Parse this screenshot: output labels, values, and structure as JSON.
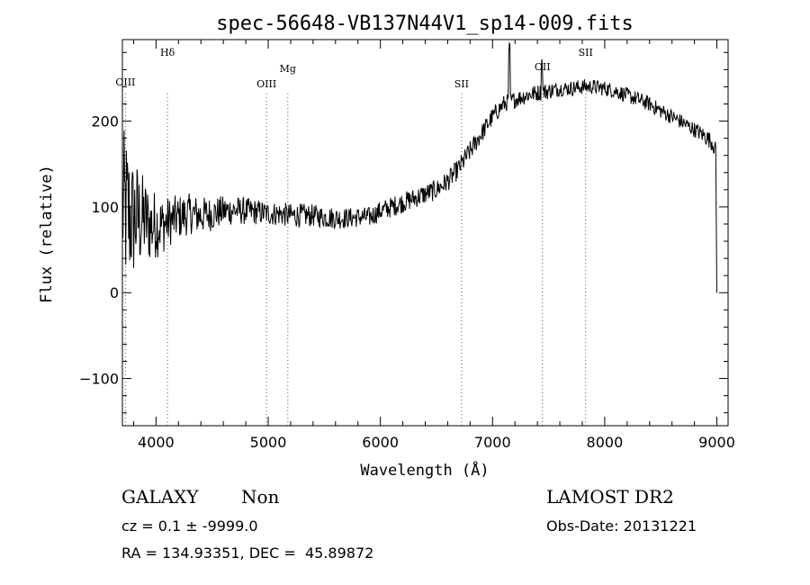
{
  "chart_data": {
    "type": "line",
    "title": "spec-56648-VB137N44V1_sp14-009.fits",
    "xlabel": "Wavelength (Å)",
    "ylabel": "Flux (relative)",
    "xlim": [
      3700,
      9100
    ],
    "ylim": [
      -155,
      295
    ],
    "xticks": [
      4000,
      5000,
      6000,
      7000,
      8000,
      9000
    ],
    "yticks": [
      -100,
      0,
      100,
      200
    ],
    "grid": false,
    "series": [
      {
        "x": [
          3700,
          3730,
          3760,
          3790,
          3820,
          3860,
          3900,
          3950,
          4000,
          4050,
          4100,
          4150,
          4200,
          4300,
          4400,
          4500,
          4600,
          4700,
          4800,
          4900,
          5000,
          5100,
          5200,
          5300,
          5400,
          5500,
          5600,
          5700,
          5800,
          5900,
          6000,
          6100,
          6200,
          6300,
          6400,
          6500,
          6600,
          6700,
          6800,
          6900,
          7000,
          7100,
          7200,
          7300,
          7400,
          7500,
          7600,
          7700,
          7800,
          7900,
          8000,
          8100,
          8200,
          8300,
          8400,
          8500,
          8600,
          8700,
          8800,
          8900,
          8960,
          8990,
          9000
        ],
        "y": [
          100,
          95,
          90,
          85,
          88,
          85,
          85,
          78,
          80,
          78,
          82,
          85,
          88,
          92,
          90,
          92,
          95,
          96,
          95,
          94,
          92,
          92,
          90,
          90,
          90,
          88,
          87,
          87,
          88,
          88,
          95,
          100,
          105,
          110,
          115,
          120,
          130,
          145,
          165,
          185,
          205,
          220,
          225,
          230,
          233,
          235,
          238,
          238,
          240,
          240,
          238,
          235,
          230,
          225,
          220,
          212,
          205,
          198,
          190,
          182,
          175,
          165,
          0
        ],
        "noise": [
          90,
          95,
          85,
          75,
          70,
          60,
          50,
          45,
          40,
          35,
          30,
          28,
          26,
          24,
          22,
          20,
          18,
          17,
          16,
          15,
          14,
          14,
          14,
          14,
          13,
          13,
          13,
          12,
          12,
          12,
          12,
          12,
          12,
          12,
          12,
          12,
          12,
          12,
          12,
          11,
          11,
          10,
          10,
          10,
          10,
          10,
          9,
          9,
          9,
          9,
          9,
          9,
          9,
          9,
          9,
          9,
          9,
          9,
          9,
          10,
          10,
          10,
          0
        ]
      }
    ],
    "line_markers": [
      {
        "label": "OIII",
        "x": 3727
      },
      {
        "label": "Hδ",
        "x": 4102
      },
      {
        "label": "OIII",
        "x": 4985
      },
      {
        "label": "Mg",
        "x": 5175
      },
      {
        "label": "SII",
        "x": 6724
      },
      {
        "label": "OII",
        "x": 7445
      },
      {
        "label": "SII",
        "x": 7830
      }
    ]
  },
  "info": {
    "object_type": "GALAXY",
    "subclass": "Non",
    "survey": "LAMOST DR2",
    "cz_line": "cz = 0.1 ± -9999.0",
    "obs_date": "Obs-Date: 20131221",
    "coords": "RA = 134.93351, DEC =  45.89872"
  }
}
